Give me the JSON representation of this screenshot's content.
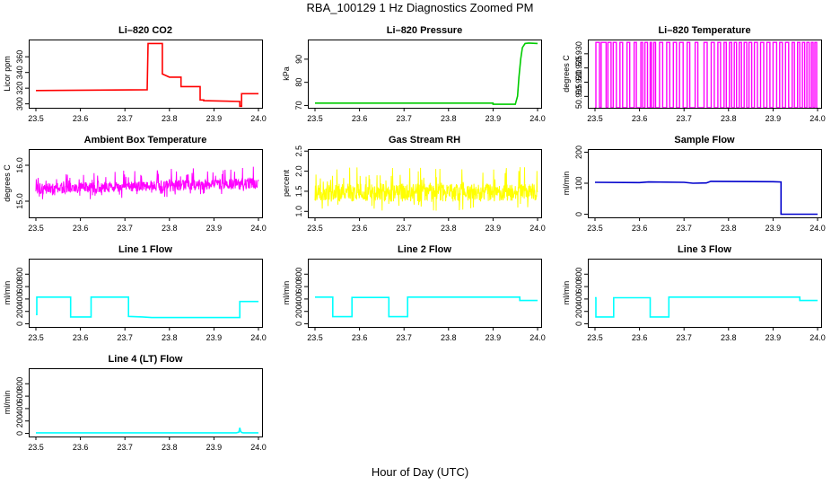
{
  "figure": {
    "title": "RBA_100129  1 Hz Diagnostics Zoomed PM",
    "xlabel": "Hour of Day (UTC)"
  },
  "chart_data": [
    {
      "type": "line",
      "title": "Li–820 CO2",
      "ylabel": "Licor ppm",
      "color": "#ff0000",
      "xlim": [
        23.5,
        24.0
      ],
      "ylim": [
        295,
        382
      ],
      "xticks": [
        23.5,
        23.6,
        23.7,
        23.8,
        23.9,
        24.0
      ],
      "yticks": [
        300,
        320,
        340,
        360
      ],
      "series": [
        {
          "x": [
            23.5,
            23.75,
            23.75,
            23.752,
            23.752,
            23.768,
            23.768,
            23.784,
            23.784,
            23.8,
            23.8,
            23.826,
            23.826,
            23.835,
            23.835,
            23.869,
            23.869,
            23.877,
            23.877,
            23.958,
            23.958,
            23.962,
            23.962,
            24.0
          ],
          "y": [
            317,
            318,
            318,
            377,
            377,
            377,
            377,
            377,
            338,
            334,
            334,
            334,
            322,
            322,
            322,
            322,
            305,
            305,
            304,
            303,
            297,
            297,
            313,
            313
          ]
        }
      ]
    },
    {
      "type": "line",
      "title": "Li–820 Pressure",
      "ylabel": "kPa",
      "color": "#00cc00",
      "xlim": [
        23.5,
        24.0
      ],
      "ylim": [
        69,
        98.5
      ],
      "xticks": [
        23.5,
        23.6,
        23.7,
        23.8,
        23.9,
        24.0
      ],
      "yticks": [
        70,
        80,
        90
      ],
      "series": [
        {
          "x": [
            23.5,
            23.9,
            23.9,
            23.95,
            23.955,
            23.958,
            23.962,
            23.966,
            23.972,
            23.98,
            24.0
          ],
          "y": [
            71.0,
            71.0,
            70.5,
            70.5,
            74.0,
            82.0,
            90.0,
            95.0,
            96.8,
            97.0,
            96.8
          ]
        }
      ]
    },
    {
      "type": "line",
      "title": "Li–820 Temperature",
      "ylabel": "degrees C",
      "color": "#ff00ff",
      "xlim": [
        23.5,
        24.0
      ],
      "ylim": [
        50.911,
        50.935
      ],
      "xticks": [
        23.5,
        23.6,
        23.7,
        23.8,
        23.9,
        24.0
      ],
      "yticks": [
        50.915,
        50.92,
        50.925,
        50.93
      ],
      "values_at_steps": [
        50.911,
        50.934
      ],
      "switch_times": [
        23.502,
        23.51,
        23.514,
        23.525,
        23.529,
        23.536,
        23.541,
        23.548,
        23.556,
        23.562,
        23.572,
        23.578,
        23.588,
        23.593,
        23.603,
        23.607,
        23.612,
        23.618,
        23.624,
        23.627,
        23.632,
        23.636,
        23.645,
        23.652,
        23.661,
        23.668,
        23.676,
        23.683,
        23.69,
        23.698,
        23.707,
        23.713,
        23.725,
        23.731,
        23.745,
        23.752,
        23.761,
        23.768,
        23.776,
        23.782,
        23.79,
        23.795,
        23.802,
        23.807,
        23.813,
        23.818,
        23.824,
        23.829,
        23.835,
        23.841,
        23.846,
        23.852,
        23.858,
        23.865,
        23.872,
        23.879,
        23.886,
        23.893,
        23.9,
        23.908,
        23.915,
        23.921,
        23.928,
        23.935,
        23.943,
        23.948,
        23.955,
        23.96,
        23.966,
        23.971,
        23.976,
        23.981,
        23.986,
        23.99,
        23.994,
        23.998
      ]
    },
    {
      "type": "line",
      "title": "Ambient Box Temperature",
      "ylabel": "degrees C",
      "color": "#ff00ff",
      "xlim": [
        23.5,
        24.0
      ],
      "ylim": [
        14.55,
        16.45
      ],
      "xticks": [
        23.5,
        23.6,
        23.7,
        23.8,
        23.9,
        24.0
      ],
      "yticks": [
        15.0,
        16.0
      ],
      "noise": {
        "center": [
          15.3,
          15.45
        ],
        "spread_low": 0.3,
        "spread_high": 0.8
      }
    },
    {
      "type": "line",
      "title": "Gas Stream RH",
      "ylabel": "percent",
      "color": "#ffff00",
      "xlim": [
        23.5,
        24.0
      ],
      "ylim": [
        0.85,
        2.55
      ],
      "xticks": [
        23.5,
        23.6,
        23.7,
        23.8,
        23.9,
        24.0
      ],
      "yticks": [
        1.0,
        1.5,
        2.0,
        2.5
      ],
      "noise": {
        "center": [
          1.4,
          1.4
        ],
        "spread_low": 0.45,
        "spread_high": 1.1
      }
    },
    {
      "type": "line",
      "title": "Sample Flow",
      "ylabel": "ml/min",
      "color": "#0000cc",
      "xlim": [
        23.5,
        24.0
      ],
      "ylim": [
        -10,
        210
      ],
      "xticks": [
        23.5,
        23.6,
        23.7,
        23.8,
        23.9,
        24.0
      ],
      "yticks": [
        0,
        100,
        200
      ],
      "series": [
        {
          "x": [
            23.5,
            23.6,
            23.62,
            23.7,
            23.72,
            23.75,
            23.76,
            23.9,
            23.918,
            23.918,
            23.96,
            24.0
          ],
          "y": [
            103,
            102,
            104,
            103,
            100,
            101,
            106,
            105,
            104,
            0,
            0,
            0
          ]
        }
      ]
    },
    {
      "type": "line",
      "title": "Line 1 Flow",
      "ylabel": "ml/min",
      "color": "#00ffff",
      "xlim": [
        23.5,
        24.0
      ],
      "ylim": [
        -50,
        1050
      ],
      "xticks": [
        23.5,
        23.6,
        23.7,
        23.8,
        23.9,
        24.0
      ],
      "yticks": [
        0,
        200,
        400,
        600,
        800
      ],
      "series": [
        {
          "x": [
            23.5,
            23.502,
            23.502,
            23.578,
            23.578,
            23.624,
            23.624,
            23.708,
            23.708,
            23.74,
            23.76,
            23.958,
            23.958,
            24.0
          ],
          "y": [
            150,
            150,
            430,
            430,
            110,
            110,
            430,
            430,
            120,
            110,
            100,
            100,
            360,
            360
          ]
        }
      ]
    },
    {
      "type": "line",
      "title": "Line 2 Flow",
      "ylabel": "ml/min",
      "color": "#00ffff",
      "xlim": [
        23.5,
        24.0
      ],
      "ylim": [
        -50,
        1050
      ],
      "xticks": [
        23.5,
        23.6,
        23.7,
        23.8,
        23.9,
        24.0
      ],
      "yticks": [
        0,
        200,
        400,
        600,
        800
      ],
      "series": [
        {
          "x": [
            23.5,
            23.54,
            23.54,
            23.583,
            23.583,
            23.666,
            23.666,
            23.708,
            23.708,
            23.96,
            23.96,
            24.0
          ],
          "y": [
            430,
            430,
            115,
            115,
            425,
            425,
            115,
            115,
            430,
            430,
            375,
            375
          ]
        }
      ]
    },
    {
      "type": "line",
      "title": "Line 3 Flow",
      "ylabel": "ml/min",
      "color": "#00ffff",
      "xlim": [
        23.5,
        24.0
      ],
      "ylim": [
        -50,
        1050
      ],
      "xticks": [
        23.5,
        23.6,
        23.7,
        23.8,
        23.9,
        24.0
      ],
      "yticks": [
        0,
        200,
        400,
        600,
        800
      ],
      "series": [
        {
          "x": [
            23.5,
            23.502,
            23.502,
            23.542,
            23.542,
            23.624,
            23.624,
            23.666,
            23.666,
            23.96,
            23.96,
            24.0
          ],
          "y": [
            420,
            420,
            110,
            110,
            420,
            420,
            110,
            110,
            430,
            430,
            375,
            375
          ]
        }
      ]
    },
    {
      "type": "line",
      "title": "Line 4 (LT) Flow",
      "ylabel": "ml/min",
      "color": "#00ffff",
      "xlim": [
        23.5,
        24.0
      ],
      "ylim": [
        -50,
        1050
      ],
      "xticks": [
        23.5,
        23.6,
        23.7,
        23.8,
        23.9,
        24.0
      ],
      "yticks": [
        0,
        200,
        400,
        600,
        800
      ],
      "series": [
        {
          "x": [
            23.5,
            23.95,
            23.956,
            23.958,
            23.96,
            23.962,
            23.966,
            24.0
          ],
          "y": [
            10,
            10,
            20,
            90,
            30,
            15,
            10,
            10
          ]
        }
      ]
    }
  ]
}
